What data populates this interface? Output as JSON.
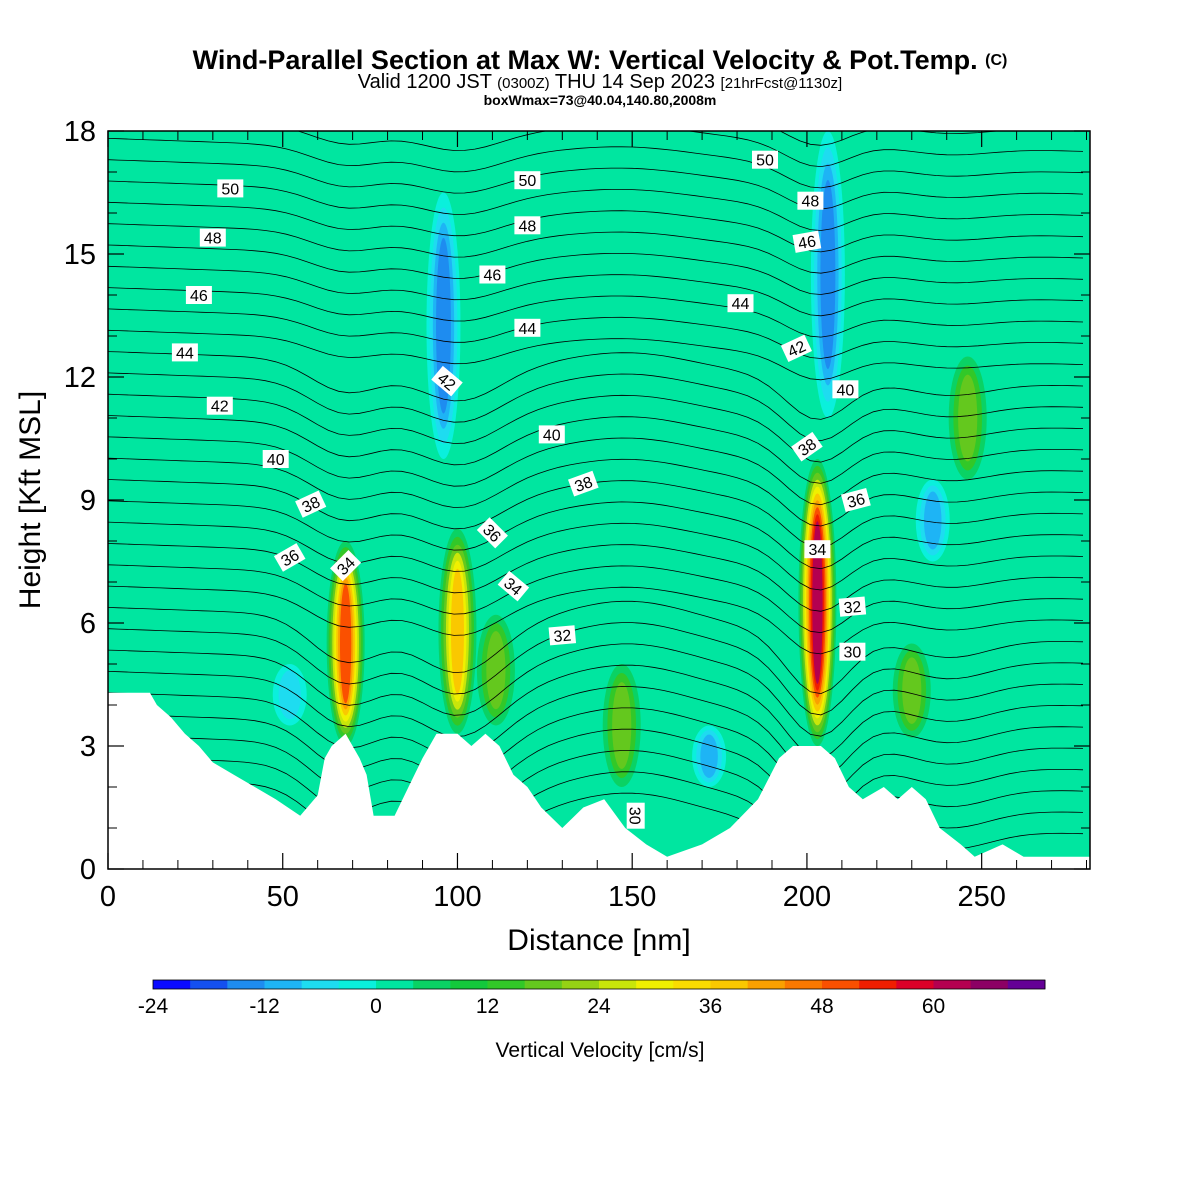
{
  "header": {
    "title_main": "Wind-Parallel Section at Max W: Vertical Velocity & Pot.Temp.",
    "title_mark": "(C)",
    "valid_prefix": "Valid 1200 JST",
    "valid_utc": "(0300Z)",
    "valid_date": "THU 14 Sep 2023",
    "forecast_tag": "[21hrFcst@1130z]",
    "box_info": "boxWmax=73@40.04,140.80,2008m"
  },
  "colorbar": {
    "label": "Vertical Velocity [cm/s]",
    "min": -24,
    "max": 69,
    "step": 4,
    "tick_values": [
      -24,
      -12,
      0,
      12,
      24,
      36,
      48,
      60
    ],
    "tick_labels": [
      "-24",
      "-12",
      "0",
      "12",
      "24",
      "36",
      "48",
      "60"
    ],
    "colors": [
      "#0a0aff",
      "#1450f0",
      "#1e8cf0",
      "#1eb4f5",
      "#1edcf0",
      "#0af0dc",
      "#00e6a0",
      "#0ad264",
      "#14c83c",
      "#32c828",
      "#64c81e",
      "#96d214",
      "#c8e60a",
      "#f0f000",
      "#fadc00",
      "#fac800",
      "#faa000",
      "#fa7800",
      "#fa5000",
      "#f01e00",
      "#dc0028",
      "#b40050",
      "#8c0064",
      "#640096"
    ]
  },
  "chart_data": {
    "type": "heatmap",
    "title": "Wind-Parallel Section at Max W: Vertical Velocity & Pot.Temp.",
    "xlabel": "Distance [nm]",
    "ylabel": "Height [Kft MSL]",
    "xlim": [
      0,
      281
    ],
    "ylim": [
      0,
      18
    ],
    "x_ticks": [
      0,
      50,
      100,
      150,
      200,
      250
    ],
    "x_tick_labels": [
      "0",
      "50",
      "100",
      "150",
      "200",
      "250"
    ],
    "y_ticks": [
      0,
      3,
      6,
      9,
      12,
      15,
      18
    ],
    "y_tick_labels": [
      "0",
      "3",
      "6",
      "9",
      "12",
      "15",
      "18"
    ],
    "vertical_velocity_features": [
      {
        "x": 68,
        "y_bottom": 3.0,
        "y_top": 8.0,
        "peak": 48,
        "kind": "updraft"
      },
      {
        "x": 100,
        "y_bottom": 3.3,
        "y_top": 8.3,
        "peak": 36,
        "kind": "updraft"
      },
      {
        "x": 203,
        "y_bottom": 3.0,
        "y_top": 10.0,
        "peak": 60,
        "kind": "updraft"
      },
      {
        "x": 111,
        "y_bottom": 3.5,
        "y_top": 6.2,
        "peak": 22,
        "kind": "updraft"
      },
      {
        "x": 147,
        "y_bottom": 2.0,
        "y_top": 5.0,
        "peak": 18,
        "kind": "updraft"
      },
      {
        "x": 230,
        "y_bottom": 3.2,
        "y_top": 5.5,
        "peak": 22,
        "kind": "updraft"
      },
      {
        "x": 246,
        "y_bottom": 9.5,
        "y_top": 12.5,
        "peak": 18,
        "kind": "updraft"
      },
      {
        "x": 96,
        "y_bottom": 10.0,
        "y_top": 16.5,
        "peak": -16,
        "kind": "downdraft"
      },
      {
        "x": 206,
        "y_bottom": 11.0,
        "y_top": 18.0,
        "peak": -14,
        "kind": "downdraft"
      },
      {
        "x": 236,
        "y_bottom": 7.5,
        "y_top": 9.5,
        "peak": -12,
        "kind": "downdraft"
      },
      {
        "x": 172,
        "y_bottom": 2.0,
        "y_top": 3.5,
        "peak": -10,
        "kind": "downdraft"
      },
      {
        "x": 52,
        "y_bottom": 3.5,
        "y_top": 5.0,
        "peak": -8,
        "kind": "downdraft"
      }
    ],
    "terrain_height_kft": [
      [
        0,
        4.3
      ],
      [
        12,
        4.3
      ],
      [
        14,
        4.0
      ],
      [
        18,
        3.7
      ],
      [
        22,
        3.3
      ],
      [
        26,
        3.0
      ],
      [
        30,
        2.6
      ],
      [
        36,
        2.3
      ],
      [
        42,
        2.0
      ],
      [
        48,
        1.7
      ],
      [
        55,
        1.3
      ],
      [
        60,
        1.8
      ],
      [
        62,
        2.7
      ],
      [
        64,
        3.0
      ],
      [
        68,
        3.3
      ],
      [
        70,
        3.0
      ],
      [
        72,
        2.7
      ],
      [
        74,
        2.3
      ],
      [
        76,
        1.3
      ],
      [
        82,
        1.3
      ],
      [
        86,
        2.0
      ],
      [
        90,
        2.7
      ],
      [
        94,
        3.3
      ],
      [
        100,
        3.3
      ],
      [
        104,
        3.0
      ],
      [
        108,
        3.3
      ],
      [
        112,
        3.0
      ],
      [
        116,
        2.3
      ],
      [
        120,
        2.0
      ],
      [
        124,
        1.5
      ],
      [
        130,
        1.0
      ],
      [
        136,
        1.5
      ],
      [
        142,
        1.7
      ],
      [
        148,
        1.0
      ],
      [
        154,
        0.6
      ],
      [
        160,
        0.3
      ],
      [
        170,
        0.6
      ],
      [
        178,
        1.0
      ],
      [
        186,
        1.7
      ],
      [
        192,
        2.7
      ],
      [
        196,
        3.0
      ],
      [
        204,
        3.0
      ],
      [
        208,
        2.7
      ],
      [
        212,
        2.0
      ],
      [
        216,
        1.7
      ],
      [
        222,
        2.0
      ],
      [
        226,
        1.7
      ],
      [
        230,
        2.0
      ],
      [
        234,
        1.7
      ],
      [
        238,
        1.0
      ],
      [
        244,
        0.6
      ],
      [
        248,
        0.3
      ],
      [
        256,
        0.6
      ],
      [
        262,
        0.3
      ],
      [
        270,
        0.3
      ],
      [
        281,
        0.3
      ]
    ],
    "contour_labels": [
      {
        "text": "50",
        "x": 35,
        "y": 16.6,
        "angle": 0
      },
      {
        "text": "48",
        "x": 30,
        "y": 15.4,
        "angle": 0
      },
      {
        "text": "46",
        "x": 26,
        "y": 14.0,
        "angle": 0
      },
      {
        "text": "44",
        "x": 22,
        "y": 12.6,
        "angle": 0
      },
      {
        "text": "42",
        "x": 32,
        "y": 11.3,
        "angle": 0
      },
      {
        "text": "40",
        "x": 48,
        "y": 10.0,
        "angle": 0
      },
      {
        "text": "38",
        "x": 58,
        "y": 8.9,
        "angle": -25
      },
      {
        "text": "36",
        "x": 52,
        "y": 7.6,
        "angle": -30
      },
      {
        "text": "34",
        "x": 68,
        "y": 7.4,
        "angle": -45
      },
      {
        "text": "50",
        "x": 120,
        "y": 16.8,
        "angle": 0
      },
      {
        "text": "48",
        "x": 120,
        "y": 15.7,
        "angle": 0
      },
      {
        "text": "46",
        "x": 110,
        "y": 14.5,
        "angle": 0
      },
      {
        "text": "44",
        "x": 120,
        "y": 13.2,
        "angle": 0
      },
      {
        "text": "42",
        "x": 97,
        "y": 11.9,
        "angle": 40
      },
      {
        "text": "40",
        "x": 127,
        "y": 10.6,
        "angle": 0
      },
      {
        "text": "38",
        "x": 136,
        "y": 9.4,
        "angle": -20
      },
      {
        "text": "36",
        "x": 110,
        "y": 8.2,
        "angle": 45
      },
      {
        "text": "34",
        "x": 116,
        "y": 6.9,
        "angle": 40
      },
      {
        "text": "32",
        "x": 130,
        "y": 5.7,
        "angle": -5
      },
      {
        "text": "30",
        "x": 151,
        "y": 1.3,
        "angle": 90
      },
      {
        "text": "50",
        "x": 188,
        "y": 17.3,
        "angle": 0
      },
      {
        "text": "48",
        "x": 201,
        "y": 16.3,
        "angle": 0
      },
      {
        "text": "46",
        "x": 200,
        "y": 15.3,
        "angle": -10
      },
      {
        "text": "44",
        "x": 181,
        "y": 13.8,
        "angle": 0
      },
      {
        "text": "42",
        "x": 197,
        "y": 12.7,
        "angle": -25
      },
      {
        "text": "40",
        "x": 211,
        "y": 11.7,
        "angle": 0
      },
      {
        "text": "38",
        "x": 200,
        "y": 10.3,
        "angle": -35
      },
      {
        "text": "36",
        "x": 214,
        "y": 9.0,
        "angle": -15
      },
      {
        "text": "34",
        "x": 203,
        "y": 7.8,
        "angle": 0
      },
      {
        "text": "32",
        "x": 213,
        "y": 6.4,
        "angle": -5
      },
      {
        "text": "30",
        "x": 213,
        "y": 5.3,
        "angle": 0
      }
    ]
  }
}
